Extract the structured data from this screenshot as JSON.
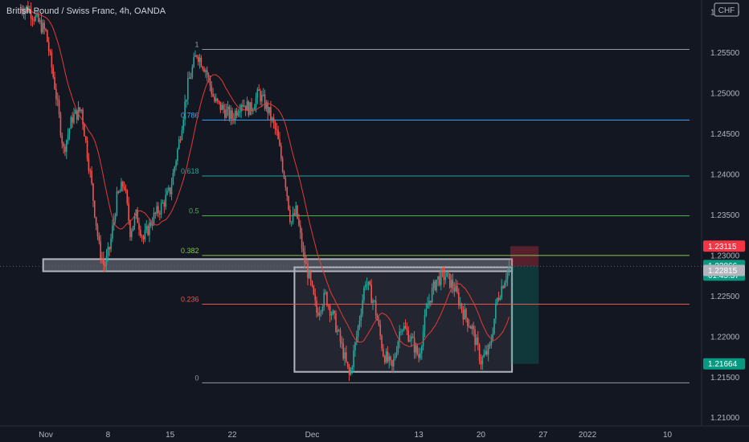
{
  "chart_data": {
    "type": "candlestick",
    "title": "British Pound / Swiss Franc, 4h, OANDA",
    "currency": "CHF",
    "ylim": [
      1.207,
      1.2615
    ],
    "y_ticks": [
      "1.26000",
      "1.25500",
      "1.25000",
      "1.24500",
      "1.24000",
      "1.23500",
      "1.23000",
      "1.22500",
      "1.22000",
      "1.21500",
      "1.21000"
    ],
    "x_ticks": [
      {
        "label": "Nov",
        "day": 0
      },
      {
        "label": "8",
        "day": 7
      },
      {
        "label": "15",
        "day": 14
      },
      {
        "label": "22",
        "day": 21
      },
      {
        "label": "Dec",
        "day": 30
      },
      {
        "label": "13",
        "day": 42
      },
      {
        "label": "20",
        "day": 49
      },
      {
        "label": "27",
        "day": 56
      },
      {
        "label": "2022",
        "day": 61
      },
      {
        "label": "10",
        "day": 70
      }
    ],
    "fib_levels": [
      {
        "label": "1",
        "value": 1.2554,
        "color": "#9598a1"
      },
      {
        "label": "0.786",
        "value": 1.2467,
        "color": "#42a5f5"
      },
      {
        "label": "0.618",
        "value": 1.2398,
        "color": "#26a69a"
      },
      {
        "label": "0.5",
        "value": 1.2349,
        "color": "#4caf50"
      },
      {
        "label": "0.382",
        "value": 1.23,
        "color": "#8bc34a"
      },
      {
        "label": "0.236",
        "value": 1.224,
        "color": "#ef5350"
      },
      {
        "label": "0",
        "value": 1.2143,
        "color": "#9598a1"
      }
    ],
    "price_tags": [
      {
        "value": 1.23115,
        "text": "1.23115",
        "color": "#f23645"
      },
      {
        "value": 1.22866,
        "text": "1.22866",
        "sub": "01:45:37",
        "color": "#089981"
      },
      {
        "value": 1.22815,
        "text": "1.22815",
        "color": "#b2b5be"
      },
      {
        "value": 1.21664,
        "text": "1.21664",
        "color": "#089981"
      }
    ],
    "zones": [
      {
        "name": "support-zone",
        "y_top": 1.22955,
        "y_bottom": 1.22805,
        "day_start": -0.3,
        "day_end": 52.5
      },
      {
        "name": "range-box",
        "y_top": 1.22855,
        "y_bottom": 1.21565,
        "day_start": 28,
        "day_end": 52.5
      }
    ],
    "position": {
      "entry": 1.22866,
      "stop": 1.23115,
      "target": 1.21664,
      "day_start": 52.3,
      "day_end": 55.5
    },
    "anchors": [
      {
        "day": -2,
        "price": 1.2605
      },
      {
        "day": 0,
        "price": 1.2575
      },
      {
        "day": 1,
        "price": 1.251
      },
      {
        "day": 2,
        "price": 1.243
      },
      {
        "day": 3,
        "price": 1.247
      },
      {
        "day": 4,
        "price": 1.248
      },
      {
        "day": 5,
        "price": 1.24
      },
      {
        "day": 6,
        "price": 1.231
      },
      {
        "day": 6.6,
        "price": 1.2285
      },
      {
        "day": 7.2,
        "price": 1.231
      },
      {
        "day": 8,
        "price": 1.237
      },
      {
        "day": 8.8,
        "price": 1.239
      },
      {
        "day": 9.5,
        "price": 1.233
      },
      {
        "day": 10.2,
        "price": 1.235
      },
      {
        "day": 11,
        "price": 1.232
      },
      {
        "day": 12,
        "price": 1.2345
      },
      {
        "day": 13,
        "price": 1.236
      },
      {
        "day": 14,
        "price": 1.238
      },
      {
        "day": 15,
        "price": 1.244
      },
      {
        "day": 16,
        "price": 1.251
      },
      {
        "day": 17,
        "price": 1.255
      },
      {
        "day": 18,
        "price": 1.253
      },
      {
        "day": 19,
        "price": 1.249
      },
      {
        "day": 20,
        "price": 1.248
      },
      {
        "day": 21,
        "price": 1.247
      },
      {
        "day": 22,
        "price": 1.249
      },
      {
        "day": 23,
        "price": 1.248
      },
      {
        "day": 24,
        "price": 1.25
      },
      {
        "day": 25,
        "price": 1.248
      },
      {
        "day": 26,
        "price": 1.245
      },
      {
        "day": 27,
        "price": 1.239
      },
      {
        "day": 27.6,
        "price": 1.234
      },
      {
        "day": 28.2,
        "price": 1.2355
      },
      {
        "day": 29,
        "price": 1.23
      },
      {
        "day": 29.6,
        "price": 1.2275
      },
      {
        "day": 30.5,
        "price": 1.223
      },
      {
        "day": 31.5,
        "price": 1.225
      },
      {
        "day": 32.5,
        "price": 1.222
      },
      {
        "day": 33.5,
        "price": 1.218
      },
      {
        "day": 34.2,
        "price": 1.215
      },
      {
        "day": 35,
        "price": 1.22
      },
      {
        "day": 36,
        "price": 1.227
      },
      {
        "day": 37,
        "price": 1.224
      },
      {
        "day": 38,
        "price": 1.218
      },
      {
        "day": 39,
        "price": 1.216
      },
      {
        "day": 40,
        "price": 1.2215
      },
      {
        "day": 41,
        "price": 1.22
      },
      {
        "day": 42,
        "price": 1.2175
      },
      {
        "day": 43,
        "price": 1.224
      },
      {
        "day": 44,
        "price": 1.227
      },
      {
        "day": 45,
        "price": 1.2275
      },
      {
        "day": 46,
        "price": 1.226
      },
      {
        "day": 47,
        "price": 1.223
      },
      {
        "day": 48,
        "price": 1.221
      },
      {
        "day": 49,
        "price": 1.217
      },
      {
        "day": 50,
        "price": 1.2185
      },
      {
        "day": 50.8,
        "price": 1.2245
      },
      {
        "day": 51.6,
        "price": 1.227
      },
      {
        "day": 52.2,
        "price": 1.22866
      }
    ]
  }
}
